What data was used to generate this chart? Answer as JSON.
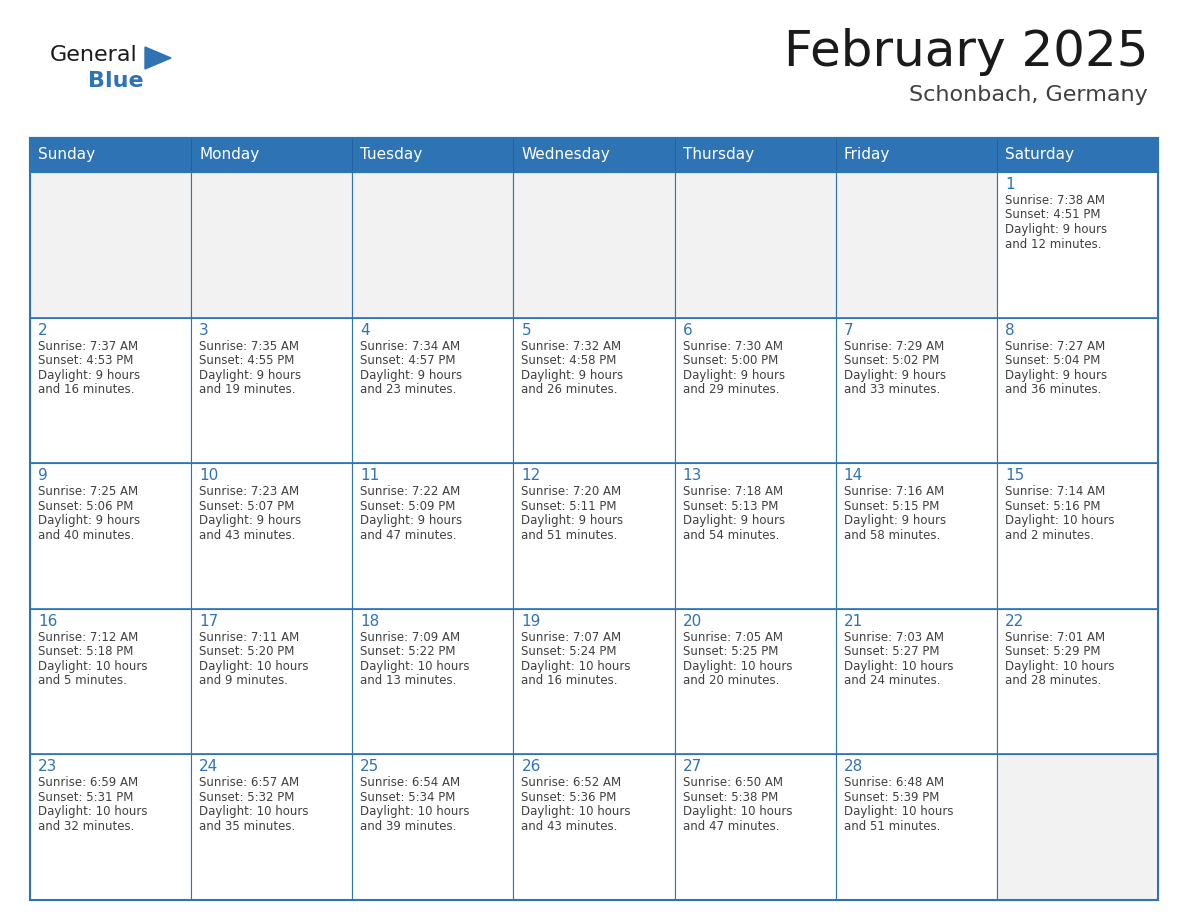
{
  "title": "February 2025",
  "subtitle": "Schonbach, Germany",
  "header_bg": "#2E74B5",
  "header_text_color": "#FFFFFF",
  "cell_bg_light": "#F2F2F2",
  "cell_bg_white": "#FFFFFF",
  "cell_border_color": "#2E74B5",
  "day_number_color": "#2E74B5",
  "detail_text_color": "#404040",
  "days_of_week": [
    "Sunday",
    "Monday",
    "Tuesday",
    "Wednesday",
    "Thursday",
    "Friday",
    "Saturday"
  ],
  "calendar_data": [
    [
      null,
      null,
      null,
      null,
      null,
      null,
      {
        "day": "1",
        "sunrise": "7:38 AM",
        "sunset": "4:51 PM",
        "daylight_line1": "Daylight: 9 hours",
        "daylight_line2": "and 12 minutes."
      }
    ],
    [
      {
        "day": "2",
        "sunrise": "7:37 AM",
        "sunset": "4:53 PM",
        "daylight_line1": "Daylight: 9 hours",
        "daylight_line2": "and 16 minutes."
      },
      {
        "day": "3",
        "sunrise": "7:35 AM",
        "sunset": "4:55 PM",
        "daylight_line1": "Daylight: 9 hours",
        "daylight_line2": "and 19 minutes."
      },
      {
        "day": "4",
        "sunrise": "7:34 AM",
        "sunset": "4:57 PM",
        "daylight_line1": "Daylight: 9 hours",
        "daylight_line2": "and 23 minutes."
      },
      {
        "day": "5",
        "sunrise": "7:32 AM",
        "sunset": "4:58 PM",
        "daylight_line1": "Daylight: 9 hours",
        "daylight_line2": "and 26 minutes."
      },
      {
        "day": "6",
        "sunrise": "7:30 AM",
        "sunset": "5:00 PM",
        "daylight_line1": "Daylight: 9 hours",
        "daylight_line2": "and 29 minutes."
      },
      {
        "day": "7",
        "sunrise": "7:29 AM",
        "sunset": "5:02 PM",
        "daylight_line1": "Daylight: 9 hours",
        "daylight_line2": "and 33 minutes."
      },
      {
        "day": "8",
        "sunrise": "7:27 AM",
        "sunset": "5:04 PM",
        "daylight_line1": "Daylight: 9 hours",
        "daylight_line2": "and 36 minutes."
      }
    ],
    [
      {
        "day": "9",
        "sunrise": "7:25 AM",
        "sunset": "5:06 PM",
        "daylight_line1": "Daylight: 9 hours",
        "daylight_line2": "and 40 minutes."
      },
      {
        "day": "10",
        "sunrise": "7:23 AM",
        "sunset": "5:07 PM",
        "daylight_line1": "Daylight: 9 hours",
        "daylight_line2": "and 43 minutes."
      },
      {
        "day": "11",
        "sunrise": "7:22 AM",
        "sunset": "5:09 PM",
        "daylight_line1": "Daylight: 9 hours",
        "daylight_line2": "and 47 minutes."
      },
      {
        "day": "12",
        "sunrise": "7:20 AM",
        "sunset": "5:11 PM",
        "daylight_line1": "Daylight: 9 hours",
        "daylight_line2": "and 51 minutes."
      },
      {
        "day": "13",
        "sunrise": "7:18 AM",
        "sunset": "5:13 PM",
        "daylight_line1": "Daylight: 9 hours",
        "daylight_line2": "and 54 minutes."
      },
      {
        "day": "14",
        "sunrise": "7:16 AM",
        "sunset": "5:15 PM",
        "daylight_line1": "Daylight: 9 hours",
        "daylight_line2": "and 58 minutes."
      },
      {
        "day": "15",
        "sunrise": "7:14 AM",
        "sunset": "5:16 PM",
        "daylight_line1": "Daylight: 10 hours",
        "daylight_line2": "and 2 minutes."
      }
    ],
    [
      {
        "day": "16",
        "sunrise": "7:12 AM",
        "sunset": "5:18 PM",
        "daylight_line1": "Daylight: 10 hours",
        "daylight_line2": "and 5 minutes."
      },
      {
        "day": "17",
        "sunrise": "7:11 AM",
        "sunset": "5:20 PM",
        "daylight_line1": "Daylight: 10 hours",
        "daylight_line2": "and 9 minutes."
      },
      {
        "day": "18",
        "sunrise": "7:09 AM",
        "sunset": "5:22 PM",
        "daylight_line1": "Daylight: 10 hours",
        "daylight_line2": "and 13 minutes."
      },
      {
        "day": "19",
        "sunrise": "7:07 AM",
        "sunset": "5:24 PM",
        "daylight_line1": "Daylight: 10 hours",
        "daylight_line2": "and 16 minutes."
      },
      {
        "day": "20",
        "sunrise": "7:05 AM",
        "sunset": "5:25 PM",
        "daylight_line1": "Daylight: 10 hours",
        "daylight_line2": "and 20 minutes."
      },
      {
        "day": "21",
        "sunrise": "7:03 AM",
        "sunset": "5:27 PM",
        "daylight_line1": "Daylight: 10 hours",
        "daylight_line2": "and 24 minutes."
      },
      {
        "day": "22",
        "sunrise": "7:01 AM",
        "sunset": "5:29 PM",
        "daylight_line1": "Daylight: 10 hours",
        "daylight_line2": "and 28 minutes."
      }
    ],
    [
      {
        "day": "23",
        "sunrise": "6:59 AM",
        "sunset": "5:31 PM",
        "daylight_line1": "Daylight: 10 hours",
        "daylight_line2": "and 32 minutes."
      },
      {
        "day": "24",
        "sunrise": "6:57 AM",
        "sunset": "5:32 PM",
        "daylight_line1": "Daylight: 10 hours",
        "daylight_line2": "and 35 minutes."
      },
      {
        "day": "25",
        "sunrise": "6:54 AM",
        "sunset": "5:34 PM",
        "daylight_line1": "Daylight: 10 hours",
        "daylight_line2": "and 39 minutes."
      },
      {
        "day": "26",
        "sunrise": "6:52 AM",
        "sunset": "5:36 PM",
        "daylight_line1": "Daylight: 10 hours",
        "daylight_line2": "and 43 minutes."
      },
      {
        "day": "27",
        "sunrise": "6:50 AM",
        "sunset": "5:38 PM",
        "daylight_line1": "Daylight: 10 hours",
        "daylight_line2": "and 47 minutes."
      },
      {
        "day": "28",
        "sunrise": "6:48 AM",
        "sunset": "5:39 PM",
        "daylight_line1": "Daylight: 10 hours",
        "daylight_line2": "and 51 minutes."
      },
      null
    ]
  ],
  "logo_color_general": "#1a1a1a",
  "logo_color_blue": "#2E74B5",
  "logo_triangle_color": "#2E74B5",
  "title_fontsize": 36,
  "subtitle_fontsize": 16,
  "header_fontsize": 11,
  "day_num_fontsize": 11,
  "detail_fontsize": 8.5
}
